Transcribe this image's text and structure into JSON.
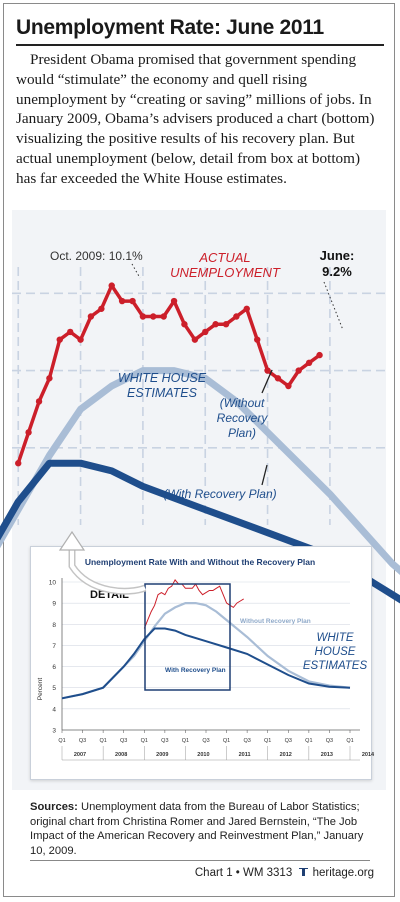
{
  "header": {
    "title": "Unemployment Rate: June 2011",
    "intro": "President Obama promised that government spending would “stimulate” the economy and quell rising unemployment by “creating or saving” millions of jobs. In January 2009, Obama’s advisers produced a chart (bottom) visualizing the positive results of his recovery plan. But actual unemployment (below, detail from box at bottom) has far exceeded the White House estimates."
  },
  "detail_labels": {
    "peak_callout": "Oct. 2009: 10.1%",
    "actual_line1": "ACTUAL",
    "actual_line2": "UNEMPLOYMENT",
    "june_line1": "June:",
    "june_line2": "9.2%",
    "wh_line1": "WHITE HOUSE",
    "wh_line2": "ESTIMATES",
    "without_line1": "(Without",
    "without_line2": "Recovery",
    "without_line3": "Plan)",
    "with_label": "(With Recovery Plan)"
  },
  "inset_labels": {
    "title": "Unemployment Rate With and Without the Recovery Plan",
    "detail": "DETAIL",
    "without": "Without Recovery Plan",
    "with": "With Recovery Plan",
    "wh_line1": "WHITE",
    "wh_line2": "HOUSE",
    "wh_line3": "ESTIMATES",
    "ylabel": "Percent"
  },
  "sources": {
    "label": "Sources:",
    "text": "Unemployment data from the Bureau of Labor Statistics; original chart from Christina Romer and Jared Bernstein, “The Job Impact of the American Recovery and Reinvestment Plan,” January 10, 2009."
  },
  "footer": {
    "text": "Chart 1 • WM 3313",
    "logo_text": "heritage.org",
    "logo_icon": "liberty-bell-icon"
  },
  "colors": {
    "actual": "#cc1f2a",
    "without_plan": "#a9bdd6",
    "with_plan": "#1f4e8c",
    "title_rule": "#222222",
    "panel": "#f2f4f7"
  },
  "chart_data": [
    {
      "type": "line",
      "title": "Unemployment Rate With and Without the Recovery Plan",
      "ylabel": "Percent",
      "ylim": [
        3,
        10
      ],
      "yticks": [
        3,
        4,
        5,
        6,
        7,
        8,
        9,
        10
      ],
      "xlim": [
        2007.0,
        2014.0
      ],
      "xticks": [
        {
          "q": "Q1",
          "y": "2007"
        },
        {
          "q": "Q3",
          "y": ""
        },
        {
          "q": "Q1",
          "y": "2008"
        },
        {
          "q": "Q3",
          "y": ""
        },
        {
          "q": "Q1",
          "y": "2009"
        },
        {
          "q": "Q3",
          "y": ""
        },
        {
          "q": "Q1",
          "y": "2010"
        },
        {
          "q": "Q3",
          "y": ""
        },
        {
          "q": "Q1",
          "y": "2011"
        },
        {
          "q": "Q3",
          "y": ""
        },
        {
          "q": "Q1",
          "y": "2012"
        },
        {
          "q": "Q3",
          "y": ""
        },
        {
          "q": "Q1",
          "y": "2013"
        },
        {
          "q": "Q3",
          "y": ""
        },
        {
          "q": "Q1",
          "y": "2014"
        }
      ],
      "grid": true,
      "series": [
        {
          "name": "Without Recovery Plan",
          "x": [
            2007.0,
            2007.5,
            2008.0,
            2008.5,
            2008.75,
            2009.0,
            2009.25,
            2009.5,
            2009.75,
            2010.0,
            2010.25,
            2010.5,
            2010.75,
            2011.0,
            2011.5,
            2012.0,
            2012.5,
            2013.0,
            2013.5,
            2014.0
          ],
          "values": [
            4.5,
            4.7,
            5.0,
            6.0,
            6.5,
            7.2,
            7.9,
            8.5,
            8.8,
            9.0,
            9.0,
            8.9,
            8.6,
            8.2,
            7.4,
            6.5,
            5.8,
            5.3,
            5.1,
            5.0
          ]
        },
        {
          "name": "With Recovery Plan",
          "x": [
            2007.0,
            2007.5,
            2008.0,
            2008.5,
            2008.75,
            2009.0,
            2009.25,
            2009.5,
            2009.75,
            2010.0,
            2010.5,
            2011.0,
            2011.5,
            2012.0,
            2012.5,
            2013.0,
            2013.5,
            2014.0
          ],
          "values": [
            4.5,
            4.7,
            5.0,
            6.0,
            6.6,
            7.3,
            7.8,
            7.8,
            7.7,
            7.5,
            7.2,
            6.9,
            6.6,
            6.1,
            5.6,
            5.2,
            5.05,
            5.0
          ]
        },
        {
          "name": "ACTUAL UNEMPLOYMENT",
          "x": [
            2009.0,
            2009.083,
            2009.167,
            2009.25,
            2009.333,
            2009.417,
            2009.5,
            2009.583,
            2009.667,
            2009.75,
            2009.833,
            2009.917,
            2010.0,
            2010.083,
            2010.167,
            2010.25,
            2010.333,
            2010.417,
            2010.5,
            2010.583,
            2010.667,
            2010.75,
            2010.833,
            2010.917,
            2011.0,
            2011.083,
            2011.167,
            2011.25,
            2011.333,
            2011.417
          ],
          "values": [
            7.8,
            8.2,
            8.6,
            8.9,
            9.4,
            9.5,
            9.4,
            9.7,
            9.8,
            10.1,
            9.9,
            9.9,
            9.7,
            9.7,
            9.7,
            9.9,
            9.6,
            9.4,
            9.5,
            9.6,
            9.6,
            9.7,
            9.8,
            9.4,
            9.0,
            8.9,
            8.8,
            9.0,
            9.1,
            9.2
          ]
        }
      ]
    },
    {
      "type": "line",
      "title": "",
      "ylim": [
        7.0,
        10.6
      ],
      "xlim": [
        2008.95,
        2011.95
      ],
      "grid": true,
      "annotations": [
        {
          "text": "Oct. 2009: 10.1%",
          "x": 2009.75,
          "y": 10.1
        },
        {
          "text": "June: 9.2%",
          "x": 2011.417,
          "y": 9.2
        }
      ]
    }
  ]
}
